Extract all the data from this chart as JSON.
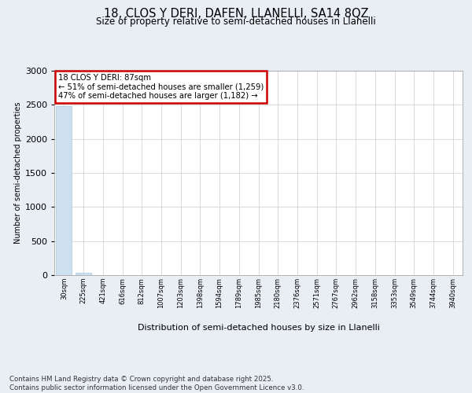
{
  "title": "18, CLOS Y DERI, DAFEN, LLANELLI, SA14 8QZ",
  "subtitle": "Size of property relative to semi-detached houses in Llanelli",
  "xlabel": "Distribution of semi-detached houses by size in Llanelli",
  "ylabel": "Number of semi-detached properties",
  "annotation_line1": "18 CLOS Y DERI: 87sqm",
  "annotation_line2": "← 51% of semi-detached houses are smaller (1,259)",
  "annotation_line3": "47% of semi-detached houses are larger (1,182) →",
  "footer_line1": "Contains HM Land Registry data © Crown copyright and database right 2025.",
  "footer_line2": "Contains public sector information licensed under the Open Government Licence v3.0.",
  "bar_labels": [
    "30sqm",
    "225sqm",
    "421sqm",
    "616sqm",
    "812sqm",
    "1007sqm",
    "1203sqm",
    "1398sqm",
    "1594sqm",
    "1789sqm",
    "1985sqm",
    "2180sqm",
    "2376sqm",
    "2571sqm",
    "2767sqm",
    "2962sqm",
    "3158sqm",
    "3353sqm",
    "3549sqm",
    "3744sqm",
    "3940sqm"
  ],
  "bar_values": [
    2480,
    38,
    4,
    2,
    1,
    0,
    0,
    0,
    0,
    0,
    0,
    0,
    0,
    0,
    0,
    0,
    0,
    0,
    0,
    0,
    0
  ],
  "bar_color": "#cce0f0",
  "bar_edge_color": "#aac8e0",
  "ylim": [
    0,
    3000
  ],
  "yticks": [
    0,
    500,
    1000,
    1500,
    2000,
    2500,
    3000
  ],
  "background_color": "#e8eef4",
  "plot_background": "#ffffff",
  "annotation_box_color": "#ffffff",
  "annotation_box_edge_color": "#cc0000",
  "grid_color": "#cccccc"
}
